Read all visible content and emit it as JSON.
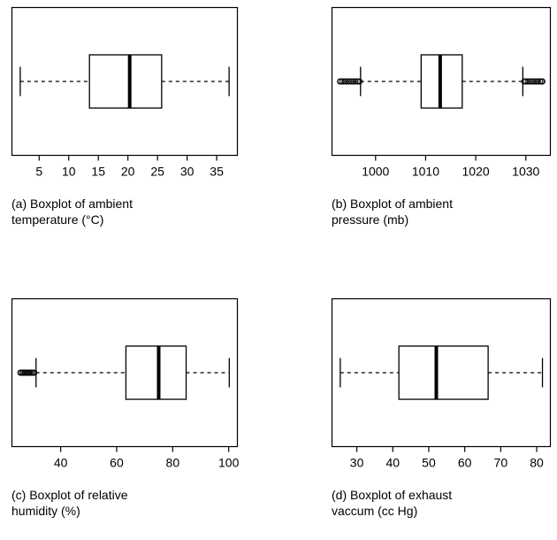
{
  "colors": {
    "stroke": "#000000",
    "background": "#ffffff",
    "box_fill": "#ffffff"
  },
  "chart_data": [
    {
      "type": "boxplot",
      "orientation": "horizontal",
      "caption_line1": "(a) Boxplot of ambient",
      "caption_line2": "temperature (°C)",
      "xlim": [
        0.4,
        38.5
      ],
      "ticks": [
        5,
        10,
        15,
        20,
        25,
        30,
        35
      ],
      "stats": {
        "whisker_low": 1.8,
        "q1": 13.5,
        "median": 20.3,
        "q3": 25.7,
        "whisker_high": 37.1
      },
      "outliers": [],
      "grid": false,
      "legend": "none"
    },
    {
      "type": "boxplot",
      "orientation": "horizontal",
      "caption_line1": "(b) Boxplot of ambient",
      "caption_line2": "pressure (mb)",
      "xlim": [
        991.3,
        1034.9
      ],
      "ticks": [
        1000,
        1010,
        1020,
        1030
      ],
      "stats": {
        "whisker_low": 997.0,
        "q1": 1009.1,
        "median": 1012.9,
        "q3": 1017.3,
        "whisker_high": 1029.4
      },
      "outliers": [
        992.9,
        993.2,
        993.6,
        994.0,
        994.4,
        994.8,
        995.2,
        995.6,
        996.0,
        996.4,
        996.8,
        1029.7,
        1030.0,
        1030.4,
        1030.8,
        1031.2,
        1031.6,
        1032.0,
        1032.4,
        1032.8,
        1033.1,
        1033.3
      ],
      "grid": false,
      "legend": "none"
    },
    {
      "type": "boxplot",
      "orientation": "horizontal",
      "caption_line1": "(c) Boxplot of relative",
      "caption_line2": "humidity (%)",
      "xlim": [
        22.6,
        103.1
      ],
      "ticks": [
        40,
        60,
        80,
        100
      ],
      "stats": {
        "whisker_low": 31.2,
        "q1": 63.3,
        "median": 75.0,
        "q3": 84.8,
        "whisker_high": 100.2
      },
      "outliers": [
        25.6,
        26.1,
        26.6,
        27.1,
        27.6,
        28.1,
        28.6,
        29.1,
        29.6,
        30.1,
        30.6
      ],
      "grid": false,
      "legend": "none"
    },
    {
      "type": "boxplot",
      "orientation": "horizontal",
      "caption_line1": "(d) Boxplot of exhaust",
      "caption_line2": "vaccum (cc Hg)",
      "xlim": [
        23.1,
        83.8
      ],
      "ticks": [
        30,
        40,
        50,
        60,
        70,
        80
      ],
      "stats": {
        "whisker_low": 25.4,
        "q1": 41.7,
        "median": 52.1,
        "q3": 66.5,
        "whisker_high": 81.6
      },
      "outliers": [],
      "grid": false,
      "legend": "none"
    }
  ]
}
